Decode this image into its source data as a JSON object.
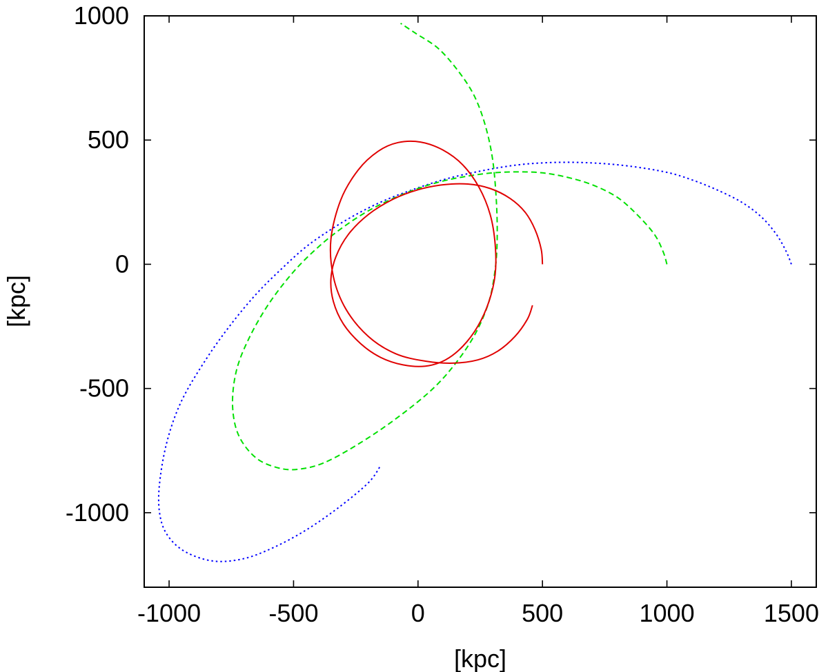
{
  "chart_data": {
    "type": "line",
    "title": "",
    "xlabel": "[kpc]",
    "ylabel": "[kpc]",
    "xlim": [
      -1100,
      1600
    ],
    "ylim": [
      -1300,
      1000
    ],
    "xticks": [
      -1000,
      -500,
      0,
      500,
      1000,
      1500
    ],
    "yticks": [
      -1000,
      -500,
      0,
      500,
      1000
    ],
    "xtick_labels": [
      "-1000",
      "-500",
      "0",
      "500",
      "1000",
      "1500"
    ],
    "ytick_labels": [
      "-1000",
      "-500",
      "0",
      "500",
      "1000"
    ],
    "grid": false,
    "legend": "none",
    "series": [
      {
        "color": "#0000ff",
        "style": "dotted",
        "x": [
          1500,
          1480,
          1440,
          1380,
          1300,
          1200,
          1100,
          1000,
          850,
          700,
          550,
          400,
          250,
          100,
          -50,
          -150,
          -250,
          -350,
          -450,
          -550,
          -650,
          -750,
          -850,
          -950,
          -1010,
          -1040,
          -1035,
          -1000,
          -930,
          -820,
          -700,
          -580,
          -450,
          -320,
          -200,
          -150
        ],
        "y": [
          0,
          50,
          120,
          190,
          250,
          300,
          340,
          370,
          395,
          408,
          410,
          400,
          375,
          340,
          290,
          250,
          200,
          140,
          70,
          -20,
          -120,
          -240,
          -380,
          -550,
          -720,
          -900,
          -1020,
          -1100,
          -1160,
          -1195,
          -1185,
          -1140,
          -1070,
          -980,
          -880,
          -810
        ]
      },
      {
        "color": "#00e000",
        "style": "dashed",
        "x": [
          1000,
          985,
          950,
          880,
          800,
          700,
          600,
          500,
          400,
          300,
          200,
          100,
          0,
          -100,
          -200,
          -300,
          -400,
          -500,
          -600,
          -680,
          -730,
          -745,
          -720,
          -650,
          -560,
          -480,
          -380,
          -250,
          -100,
          50,
          150,
          230,
          285,
          310,
          318,
          315,
          300,
          270,
          225,
          160,
          80,
          -10,
          -70
        ],
        "y": [
          0,
          50,
          120,
          200,
          270,
          320,
          350,
          368,
          372,
          368,
          355,
          335,
          305,
          265,
          215,
          150,
          70,
          -30,
          -160,
          -300,
          -430,
          -570,
          -690,
          -780,
          -820,
          -825,
          -800,
          -730,
          -630,
          -510,
          -400,
          -280,
          -150,
          -20,
          100,
          250,
          420,
          560,
          680,
          780,
          870,
          930,
          970
        ]
      },
      {
        "color": "#e00000",
        "style": "solid",
        "x": [
          500,
          495,
          470,
          430,
          370,
          290,
          200,
          100,
          0,
          -100,
          -200,
          -280,
          -330,
          -350,
          -340,
          -300,
          -230,
          -150,
          -60,
          30,
          110,
          180,
          240,
          285,
          310,
          310,
          290,
          245,
          180,
          100,
          10,
          -80,
          -160,
          -240,
          -310,
          -350,
          -340,
          -290,
          -200,
          -90,
          30,
          140,
          240,
          320,
          390,
          440,
          460
        ],
        "y": [
          0,
          60,
          140,
          210,
          265,
          305,
          323,
          320,
          300,
          262,
          200,
          120,
          30,
          -60,
          -150,
          -240,
          -320,
          -375,
          -405,
          -410,
          -385,
          -330,
          -250,
          -150,
          -40,
          80,
          200,
          310,
          400,
          460,
          492,
          490,
          455,
          380,
          260,
          100,
          -50,
          -180,
          -290,
          -360,
          -390,
          -398,
          -385,
          -350,
          -290,
          -220,
          -165
        ]
      }
    ]
  }
}
